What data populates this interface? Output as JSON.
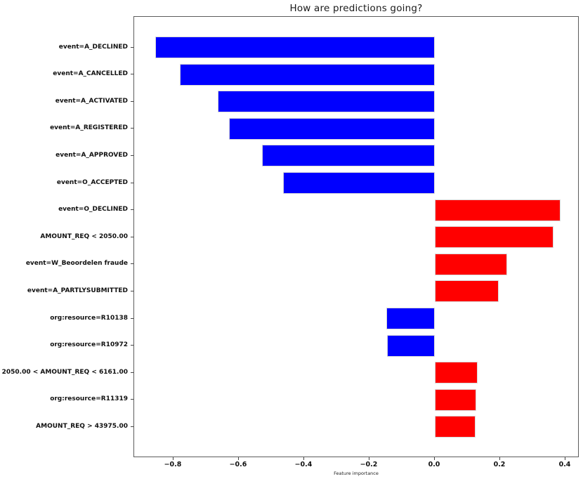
{
  "figure": {
    "title": "How are predictions going?",
    "xlabel": "Feature importance"
  },
  "chart_data": {
    "type": "bar",
    "orientation": "horizontal",
    "title": "How are predictions going?",
    "xlabel": "Feature importance",
    "ylabel": "",
    "grid": false,
    "legend": null,
    "categories": [
      "event=A_DECLINED",
      "event=A_CANCELLED",
      "event=A_ACTIVATED",
      "event=A_REGISTERED",
      "event=A_APPROVED",
      "event=O_ACCEPTED",
      "event=O_DECLINED",
      "AMOUNT_REQ < 2050.00",
      "event=W_Beoordelen fraude",
      "event=A_PARTLYSUBMITTED",
      "org:resource=R10138",
      "org:resource=R10972",
      "2050.00 < AMOUNT_REQ < 6161.00",
      "org:resource=R11319",
      "AMOUNT_REQ > 43975.00"
    ],
    "values": [
      -0.856,
      -0.78,
      -0.664,
      -0.631,
      -0.53,
      -0.465,
      0.384,
      0.363,
      0.222,
      0.196,
      -0.148,
      -0.146,
      0.131,
      0.127,
      0.125
    ],
    "positive_color": "#ff0000",
    "negative_color": "#0000ff",
    "bar_edge_color": "#d9d9d9",
    "x_ticks": [
      -0.8,
      -0.6,
      -0.4,
      -0.2,
      0.0,
      0.2,
      0.4
    ],
    "x_tick_labels": [
      "−0.8",
      "−0.6",
      "−0.4",
      "−0.2",
      "0.0",
      "0.2",
      "0.4"
    ],
    "xlim": [
      -0.92,
      0.443
    ]
  }
}
